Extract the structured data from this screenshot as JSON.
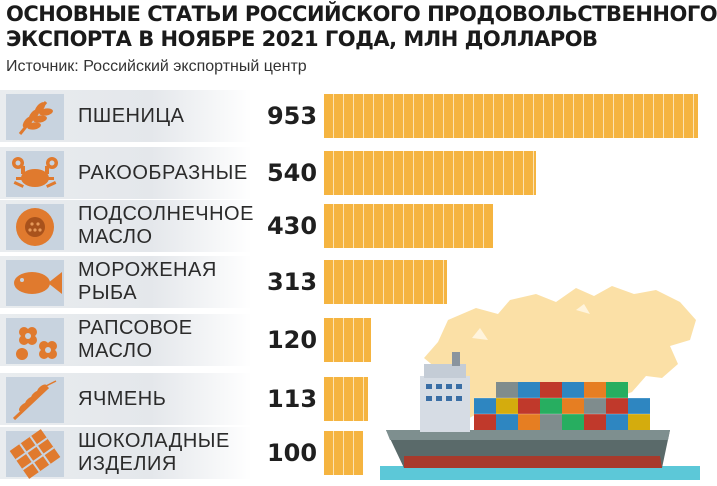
{
  "title_line1": "ОСНОВНЫЕ СТАТЬИ РОССИЙСКОГО ПРОДОВОЛЬСТВЕННОГО",
  "title_line2": "ЭКСПОРТА В НОЯБРЕ 2021 ГОДА, МЛН ДОЛЛАРОВ",
  "source": "Источник: Российский экспортный центр",
  "colors": {
    "bar": "#f5b440",
    "icon_tile": "#c8d3df",
    "icon": "#e07a2e",
    "map": "#fbe0a6",
    "sea": "#5cc8d8"
  },
  "chart_data": {
    "type": "bar",
    "orientation": "horizontal",
    "title": "ОСНОВНЫЕ СТАТЬИ РОССИЙСКОГО ПРОДОВОЛЬСТВЕННОГО ЭКСПОРТА В НОЯБРЕ 2021 ГОДА, МЛН ДОЛЛАРОВ",
    "categories": [
      "ПШЕНИЦА",
      "РАКООБРАЗНЫЕ",
      "ПОДСОЛНЕЧНОЕ МАСЛО",
      "МОРОЖЕНАЯ РЫБА",
      "РАПСОВОЕ МАСЛО",
      "ЯЧМЕНЬ",
      "ШОКОЛАДНЫЕ ИЗДЕЛИЯ"
    ],
    "values": [
      953,
      540,
      430,
      313,
      120,
      113,
      100
    ],
    "xlim": [
      0,
      953
    ],
    "grid": false,
    "legend": "none"
  },
  "rows": [
    {
      "label_lines": [
        "ПШЕНИЦА"
      ],
      "value": "953",
      "num": 953,
      "icon": "wheat-icon"
    },
    {
      "label_lines": [
        "РАКООБРАЗНЫЕ"
      ],
      "value": "540",
      "num": 540,
      "icon": "crab-icon"
    },
    {
      "label_lines": [
        "ПОДСОЛНЕЧНОЕ",
        "МАСЛО"
      ],
      "value": "430",
      "num": 430,
      "icon": "sunflower-icon"
    },
    {
      "label_lines": [
        "МОРОЖЕНАЯ",
        "РЫБА"
      ],
      "value": "313",
      "num": 313,
      "icon": "fish-icon"
    },
    {
      "label_lines": [
        "РАПСОВОЕ",
        "МАСЛО"
      ],
      "value": "120",
      "num": 120,
      "icon": "flowers-icon"
    },
    {
      "label_lines": [
        "ЯЧМЕНЬ"
      ],
      "value": "113",
      "num": 113,
      "icon": "barley-icon"
    },
    {
      "label_lines": [
        "ШОКОЛАДНЫЕ",
        "ИЗДЕЛИЯ"
      ],
      "value": "100",
      "num": 100,
      "icon": "chocolate-icon"
    }
  ],
  "illustration": {
    "map_icon": "russia-map-icon",
    "ship_icon": "container-ship-icon"
  }
}
